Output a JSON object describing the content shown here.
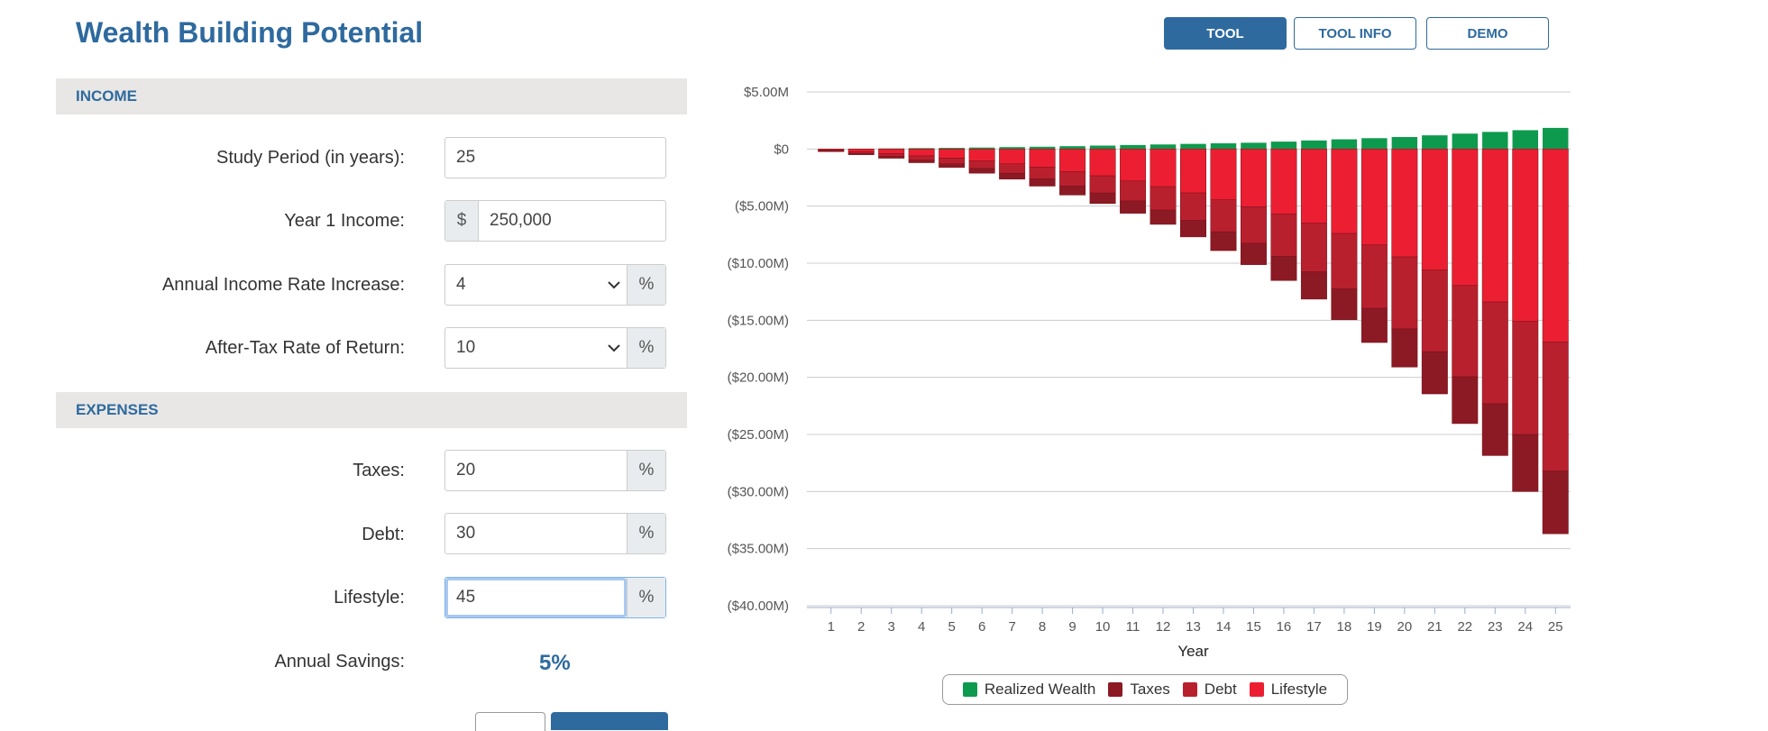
{
  "page": {
    "title": "Wealth Building Potential"
  },
  "nav": {
    "tool": "TOOL",
    "tool_info": "TOOL INFO",
    "demo": "DEMO"
  },
  "income": {
    "heading": "INCOME",
    "study_period": {
      "label": "Study Period (in years):",
      "value": "25"
    },
    "year1_income": {
      "label": "Year 1 Income:",
      "prefix": "$",
      "value": "250,000"
    },
    "income_rate": {
      "label": "Annual Income Rate Increase:",
      "value": "4",
      "unit": "%"
    },
    "return_rate": {
      "label": "After-Tax Rate of Return:",
      "value": "10",
      "unit": "%"
    }
  },
  "expenses": {
    "heading": "EXPENSES",
    "taxes": {
      "label": "Taxes:",
      "value": "20",
      "unit": "%"
    },
    "debt": {
      "label": "Debt:",
      "value": "30",
      "unit": "%"
    },
    "lifestyle": {
      "label": "Lifestyle:",
      "value": "45",
      "unit": "%"
    },
    "savings": {
      "label": "Annual Savings:",
      "value": "5%"
    }
  },
  "colors": {
    "brand": "#2e6a9e",
    "realized_wealth": "#0e9a4e",
    "taxes": "#8b1a24",
    "debt": "#b9202e",
    "lifestyle": "#ec1f32"
  },
  "chart_data": {
    "type": "bar",
    "stacked": true,
    "xlabel": "Year",
    "ylabel": "",
    "categories": [
      "1",
      "2",
      "3",
      "4",
      "5",
      "6",
      "7",
      "8",
      "9",
      "10",
      "11",
      "12",
      "13",
      "14",
      "15",
      "16",
      "17",
      "18",
      "19",
      "20",
      "21",
      "22",
      "23",
      "24",
      "25"
    ],
    "ylim": [
      -40,
      5
    ],
    "yticks": [
      5,
      0,
      -5,
      -10,
      -15,
      -20,
      -25,
      -30,
      -35,
      -40
    ],
    "ytick_labels": [
      "$5.00M",
      "$0",
      "($5.00M)",
      "($10.00M)",
      "($15.00M)",
      "($20.00M)",
      "($25.00M)",
      "($30.00M)",
      "($35.00M)",
      "($40.00M)"
    ],
    "units": "millions USD",
    "grid": true,
    "legend_position": "bottom",
    "series": [
      {
        "name": "Realized Wealth",
        "values": [
          0.01,
          0.03,
          0.05,
          0.08,
          0.1,
          0.13,
          0.17,
          0.2,
          0.25,
          0.3,
          0.35,
          0.4,
          0.45,
          0.5,
          0.55,
          0.65,
          0.75,
          0.85,
          0.95,
          1.05,
          1.2,
          1.35,
          1.5,
          1.65,
          1.85
        ]
      },
      {
        "name": "Taxes",
        "values": [
          -0.05,
          -0.1,
          -0.16,
          -0.23,
          -0.32,
          -0.42,
          -0.52,
          -0.65,
          -0.78,
          -0.92,
          -1.08,
          -1.25,
          -1.45,
          -1.65,
          -1.88,
          -2.12,
          -2.4,
          -2.7,
          -3.0,
          -3.35,
          -3.7,
          -4.1,
          -4.55,
          -5.0,
          -5.5
        ]
      },
      {
        "name": "Debt",
        "values": [
          -0.05,
          -0.15,
          -0.25,
          -0.37,
          -0.5,
          -0.65,
          -0.82,
          -1.0,
          -1.25,
          -1.5,
          -1.75,
          -2.05,
          -2.4,
          -2.8,
          -3.2,
          -3.7,
          -4.25,
          -4.85,
          -5.55,
          -6.3,
          -7.15,
          -8.0,
          -8.9,
          -9.9,
          -11.3
        ]
      },
      {
        "name": "Lifestyle",
        "values": [
          -0.1,
          -0.25,
          -0.4,
          -0.6,
          -0.8,
          -1.05,
          -1.3,
          -1.6,
          -2.0,
          -2.35,
          -2.8,
          -3.3,
          -3.85,
          -4.45,
          -5.05,
          -5.7,
          -6.5,
          -7.4,
          -8.4,
          -9.45,
          -10.6,
          -11.95,
          -13.4,
          -15.1,
          -16.9
        ]
      }
    ]
  }
}
